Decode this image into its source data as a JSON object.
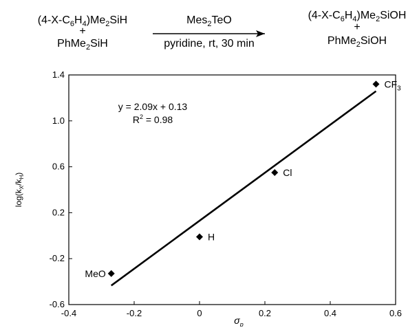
{
  "scheme": {
    "reactant_top": {
      "pre": "(4-X-C",
      "sub1": "6",
      "mid": "H",
      "sub2": "4",
      "post": ")Me",
      "sub3": "2",
      "tail": "SiH"
    },
    "reactant_plus": "+",
    "reactant_bottom": {
      "pre": "PhMe",
      "sub": "2",
      "post": "SiH"
    },
    "reagent": {
      "pre": "Mes",
      "sub": "2",
      "post": "TeO"
    },
    "conditions": "pyridine, rt, 30 min",
    "product_top": {
      "pre": "(4-X-C",
      "sub1": "6",
      "mid": "H",
      "sub2": "4",
      "post": ")Me",
      "sub3": "2",
      "tail": "SiOH"
    },
    "product_plus": "+",
    "product_bottom": {
      "pre": "PhMe",
      "sub": "2",
      "post": "SiOH"
    }
  },
  "chart_data": {
    "type": "scatter",
    "x_label": {
      "main": "σ",
      "sub": "p"
    },
    "y_label": {
      "pre": "log(k",
      "sub1": "X",
      "mid": "/k",
      "sub2": "H",
      "post": ")"
    },
    "xlim": [
      -0.4,
      0.6
    ],
    "ylim": [
      -0.6,
      1.4
    ],
    "x_ticks": [
      -0.4,
      -0.2,
      0,
      0.2,
      0.4,
      0.6
    ],
    "x_tick_labels": [
      "-0.4",
      "-0.2",
      "0",
      "0.2",
      "0.4",
      "0.6"
    ],
    "y_ticks": [
      -0.6,
      -0.2,
      0.2,
      0.6,
      1.0,
      1.4
    ],
    "y_tick_labels": [
      "-0.6",
      "-0.2",
      "0.2",
      "0.6",
      "1.0",
      "1.4"
    ],
    "grid": false,
    "marker": "diamond",
    "points": [
      {
        "label": "MeO",
        "x": -0.27,
        "y": -0.33,
        "label_side": "left"
      },
      {
        "label": "H",
        "x": 0.0,
        "y": -0.01,
        "label_side": "right"
      },
      {
        "label": "Cl",
        "x": 0.23,
        "y": 0.55,
        "label_side": "right"
      },
      {
        "label": "CF",
        "label_sub": "3",
        "x": 0.54,
        "y": 1.32,
        "label_side": "right"
      }
    ],
    "fit": {
      "slope": 2.09,
      "intercept": 0.13,
      "x_range": [
        -0.27,
        0.54
      ]
    },
    "equation": "y = 2.09x + 0.13",
    "r_squared": {
      "pre": "R",
      "sup": "2",
      "post": " = 0.98"
    }
  }
}
